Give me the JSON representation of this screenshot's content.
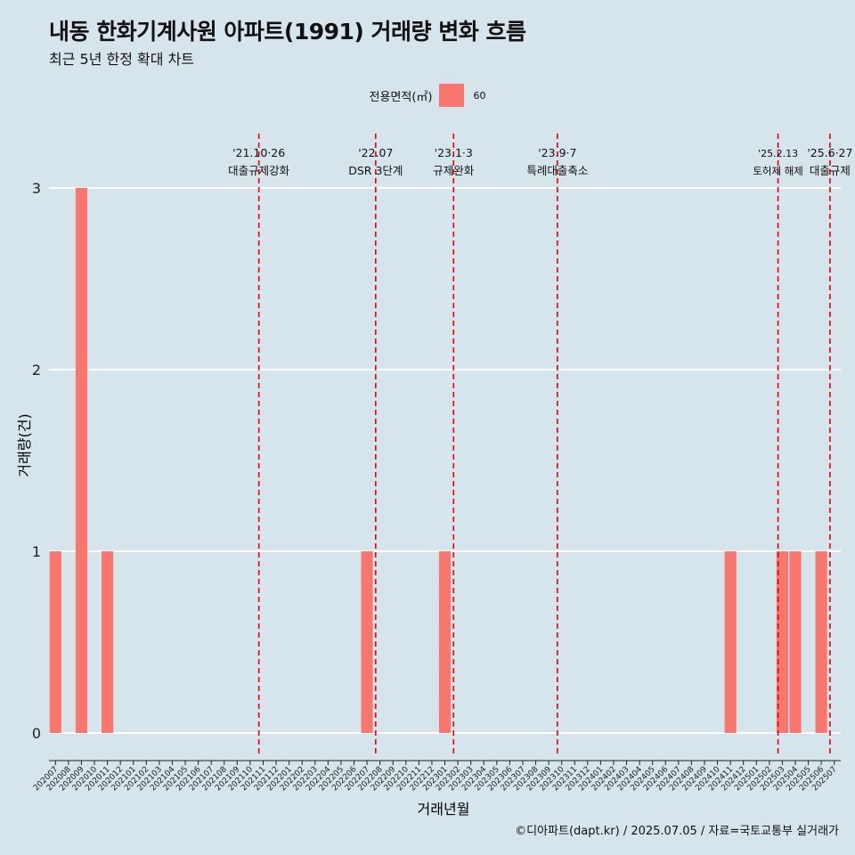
{
  "chart_data": {
    "type": "bar",
    "title": "내동 한화기계사원 아파트(1991) 거래량 변화 흐름",
    "subtitle": "최근 5년 한정 확대 차트",
    "xlabel": "거래년월",
    "ylabel": "거래량(건)",
    "ylim": [
      -0.13,
      3.3
    ],
    "yticks": [
      0,
      1,
      2,
      3
    ],
    "grid": true,
    "legend": {
      "title": "전용면적(㎡)",
      "position": "top",
      "entries": [
        "60"
      ]
    },
    "categories": [
      "202007",
      "202008",
      "202009",
      "202010",
      "202011",
      "202012",
      "202101",
      "202102",
      "202103",
      "202104",
      "202105",
      "202106",
      "202107",
      "202108",
      "202109",
      "202110",
      "202111",
      "202112",
      "202201",
      "202202",
      "202203",
      "202204",
      "202205",
      "202206",
      "202207",
      "202208",
      "202209",
      "202210",
      "202211",
      "202212",
      "202301",
      "202302",
      "202303",
      "202304",
      "202305",
      "202306",
      "202307",
      "202308",
      "202309",
      "202310",
      "202311",
      "202312",
      "202401",
      "202402",
      "202403",
      "202404",
      "202405",
      "202406",
      "202407",
      "202408",
      "202409",
      "202410",
      "202411",
      "202412",
      "202501",
      "202502",
      "202503",
      "202504",
      "202505",
      "202506",
      "202507"
    ],
    "series": [
      {
        "name": "60",
        "color": "#f8766d",
        "values": [
          1,
          0,
          3,
          0,
          1,
          0,
          0,
          0,
          0,
          0,
          0,
          0,
          0,
          0,
          0,
          0,
          0,
          0,
          0,
          0,
          0,
          0,
          0,
          0,
          1,
          0,
          0,
          0,
          0,
          0,
          1,
          0,
          0,
          0,
          0,
          0,
          0,
          0,
          0,
          0,
          0,
          0,
          0,
          0,
          0,
          0,
          0,
          0,
          0,
          0,
          0,
          0,
          1,
          0,
          0,
          0,
          1,
          1,
          0,
          1,
          0
        ]
      }
    ],
    "annotations": [
      {
        "date": "'21.10·26",
        "label": "대출규제강화",
        "x": 15.67
      },
      {
        "date": "'22.07",
        "label": "DSR 3단계",
        "x": 24.67
      },
      {
        "date": "'23.1·3",
        "label": "규제완화",
        "x": 30.67
      },
      {
        "date": "'23.9·7",
        "label": "특례대출축소",
        "x": 38.67
      },
      {
        "date": "'25.2.13",
        "label": "토허제 해제",
        "x": 55.67
      },
      {
        "date": "'25.6·27",
        "label": "대출규제",
        "x": 59.67
      }
    ],
    "caption": "©디아파트(dapt.kr) / 2025.07.05 / 자료=국토교통부 실거래가"
  }
}
